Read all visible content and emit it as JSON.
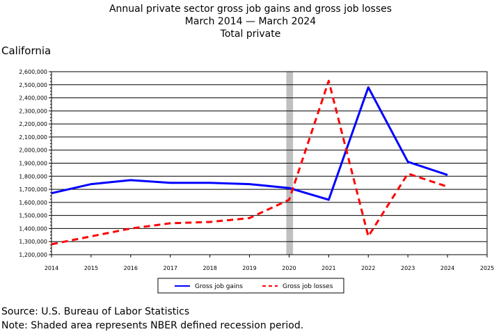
{
  "header": {
    "title_line1": "Annual private sector gross job gains and gross job losses",
    "title_line2": "March 2014 — March 2024",
    "title_line3": "Total private"
  },
  "region_label": "California",
  "footer": {
    "source": "Source: U.S. Bureau of Labor Statistics",
    "note": "Note: Shaded area represents NBER defined recession period."
  },
  "chart_data": {
    "type": "line",
    "title": "Annual private sector gross job gains and gross job losses",
    "ylim": [
      1200000,
      2600000
    ],
    "xlim": [
      2014,
      2025
    ],
    "yticks": [
      "1,200,000",
      "1,300,000",
      "1,400,000",
      "1,500,000",
      "1,600,000",
      "1,700,000",
      "1,800,000",
      "1,900,000",
      "2,000,000",
      "2,100,000",
      "2,200,000",
      "2,300,000",
      "2,400,000",
      "2,500,000",
      "2,600,000"
    ],
    "xticks": [
      "2014",
      "2015",
      "2016",
      "2017",
      "2018",
      "2019",
      "2020",
      "2021",
      "2022",
      "2023",
      "2024",
      "2025"
    ],
    "grid": "horizontal",
    "recession_shade": [
      2020.0,
      2020.17
    ],
    "legend_position": "bottom",
    "series": [
      {
        "name": "Gross job gains",
        "color": "#0000ff",
        "style": "solid",
        "x": [
          2014,
          2015,
          2016,
          2017,
          2018,
          2019,
          2020,
          2021,
          2022,
          2023,
          2024
        ],
        "values": [
          1670000,
          1740000,
          1770000,
          1750000,
          1750000,
          1740000,
          1710000,
          1620000,
          2480000,
          1910000,
          1810000
        ]
      },
      {
        "name": "Gross job losses",
        "color": "#ff0000",
        "style": "dashed",
        "x": [
          2014,
          2015,
          2016,
          2017,
          2018,
          2019,
          2020,
          2021,
          2022,
          2023,
          2024
        ],
        "values": [
          1280000,
          1340000,
          1400000,
          1440000,
          1450000,
          1480000,
          1620000,
          2530000,
          1340000,
          1820000,
          1720000
        ]
      }
    ]
  }
}
